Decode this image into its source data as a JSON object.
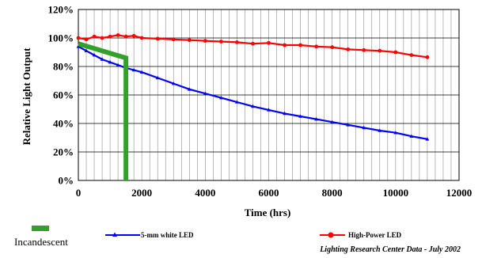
{
  "chart_data": {
    "type": "line",
    "title": "",
    "xlabel": "Time (hrs)",
    "ylabel": "Relative Light Output",
    "xlim": [
      0,
      12000
    ],
    "ylim": [
      0,
      120
    ],
    "x_ticks": [
      0,
      2000,
      4000,
      6000,
      8000,
      10000,
      12000
    ],
    "x_tick_labels": [
      "0",
      "2000",
      "4000",
      "6000",
      "8000",
      "10000",
      "12000"
    ],
    "y_ticks": [
      0,
      20,
      40,
      60,
      80,
      100,
      120
    ],
    "y_tick_labels": [
      "0%",
      "20%",
      "40%",
      "60%",
      "80%",
      "100%",
      "120%"
    ],
    "grid": {
      "vertical_minor": true,
      "horizontal_major": true
    },
    "legend_position": "bottom",
    "source_note": "Lighting Research Center Data - July 2002",
    "series": [
      {
        "name": "5-mm white LED",
        "color": "#0000ff",
        "marker": "triangle",
        "x": [
          0,
          250,
          500,
          750,
          1000,
          1250,
          1500,
          1750,
          2000,
          2500,
          3000,
          3500,
          4000,
          4500,
          5000,
          5500,
          6000,
          6500,
          7000,
          7500,
          8000,
          8500,
          9000,
          9500,
          10000,
          10500,
          11000
        ],
        "y": [
          94,
          91,
          88,
          85,
          83,
          81,
          79,
          77.5,
          76,
          72,
          68,
          64,
          61,
          58,
          55,
          52,
          49.5,
          47,
          45,
          43,
          41,
          39,
          37,
          35,
          33.5,
          31,
          29
        ]
      },
      {
        "name": "High-Power LED",
        "color": "#ff0000",
        "marker": "circle",
        "x": [
          0,
          250,
          500,
          750,
          1000,
          1250,
          1500,
          1750,
          2000,
          2500,
          3000,
          3500,
          4000,
          4500,
          5000,
          5500,
          6000,
          6500,
          7000,
          7500,
          8000,
          8500,
          9000,
          9500,
          10000,
          10500,
          11000
        ],
        "y": [
          100,
          99,
          101,
          100,
          101,
          102,
          101,
          101.5,
          100,
          99.5,
          99,
          98.5,
          98,
          97.5,
          97,
          96,
          96.5,
          95,
          95,
          94,
          93.5,
          92,
          91.5,
          91,
          90,
          88,
          86.5
        ]
      },
      {
        "name": "Incandescent",
        "color": "#33a02c",
        "marker": "none",
        "x": [
          0,
          1500,
          1500,
          1500
        ],
        "y": [
          96,
          86,
          80,
          0
        ]
      }
    ]
  }
}
